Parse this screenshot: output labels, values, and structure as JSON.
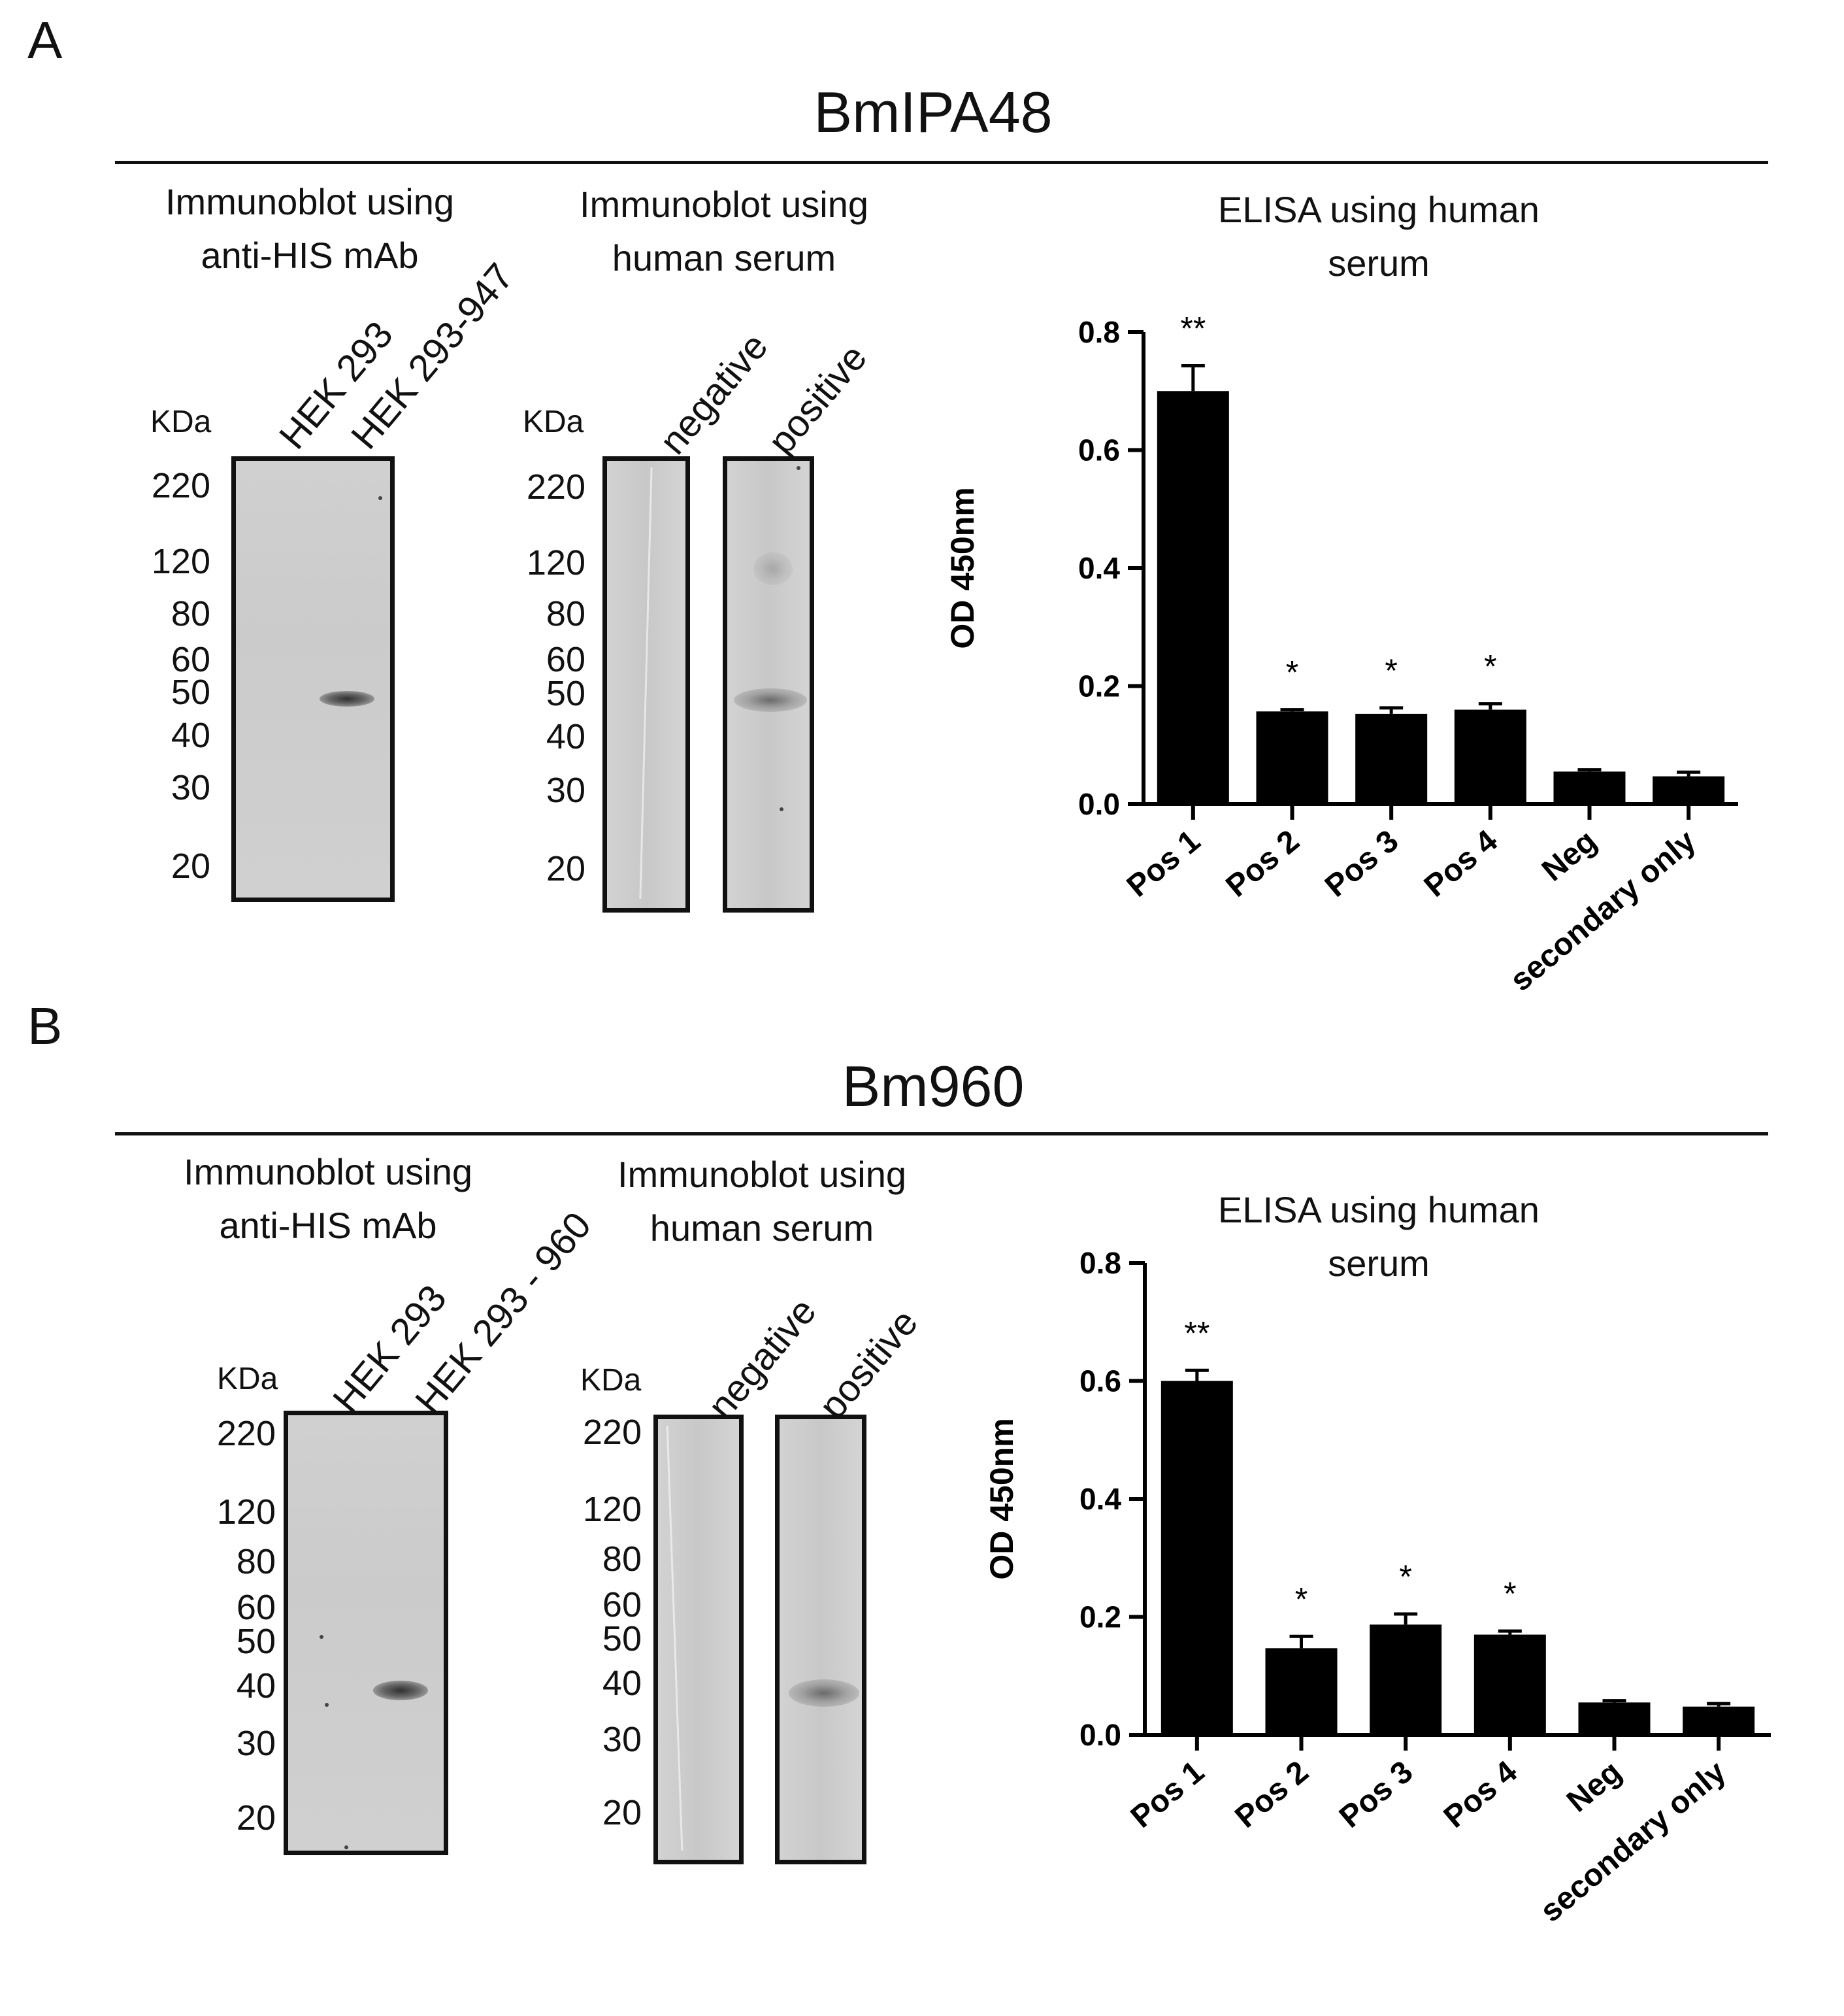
{
  "panels": [
    {
      "letter": "A",
      "protein": "BmIPA48",
      "his_blot": {
        "title_lines": [
          "Immunoblot using",
          "anti-HIS mAb"
        ],
        "kda": "KDa",
        "lanes": [
          "HEK 293",
          "HEK 293-947"
        ],
        "markers": [
          "220",
          "120",
          "80",
          "60",
          "50",
          "40",
          "30",
          "20"
        ],
        "band_kda": 50
      },
      "serum_blot": {
        "title_lines": [
          "Immunoblot using",
          "human serum"
        ],
        "kda": "KDa",
        "lanes": [
          "negative",
          "positive"
        ],
        "markers": [
          "220",
          "120",
          "80",
          "60",
          "50",
          "40",
          "30",
          "20"
        ],
        "band_kda": 50
      }
    },
    {
      "letter": "B",
      "protein": "Bm960",
      "his_blot": {
        "title_lines": [
          "Immunoblot using",
          "anti-HIS mAb"
        ],
        "kda": "KDa",
        "lanes": [
          "HEK 293",
          "HEK 293 - 960"
        ],
        "markers": [
          "220",
          "120",
          "80",
          "60",
          "50",
          "40",
          "30",
          "20"
        ],
        "band_kda": 40
      },
      "serum_blot": {
        "title_lines": [
          "Immunoblot using",
          "human serum"
        ],
        "kda": "KDa",
        "lanes": [
          "negative",
          "positive"
        ],
        "markers": [
          "220",
          "120",
          "80",
          "60",
          "50",
          "40",
          "30",
          "20"
        ],
        "band_kda": 40
      }
    }
  ],
  "chart_data": [
    {
      "type": "bar",
      "title_lines": [
        "ELISA using human",
        "serum"
      ],
      "ylabel": "OD 450nm",
      "ylim": [
        0,
        0.8
      ],
      "yticks": [
        "0.0",
        "0.2",
        "0.4",
        "0.6",
        "0.8"
      ],
      "categories": [
        "Pos 1",
        "Pos 2",
        "Pos 3",
        "Pos 4",
        "Neg",
        "secondary only"
      ],
      "values": [
        0.7,
        0.157,
        0.153,
        0.16,
        0.055,
        0.047
      ],
      "errors": [
        0.043,
        0.003,
        0.01,
        0.01,
        0.003,
        0.007
      ],
      "significance": [
        "**",
        "*",
        "*",
        "*",
        "",
        ""
      ],
      "bar_color": "#000000"
    },
    {
      "type": "bar",
      "title_lines": [
        "ELISA using human",
        "serum"
      ],
      "ylabel": "OD 450nm",
      "ylim": [
        0,
        0.8
      ],
      "yticks": [
        "0.0",
        "0.2",
        "0.4",
        "0.6",
        "0.8"
      ],
      "categories": [
        "Pos 1",
        "Pos 2",
        "Pos 3",
        "Pos 4",
        "Neg",
        "secondary only"
      ],
      "values": [
        0.6,
        0.147,
        0.187,
        0.17,
        0.055,
        0.048
      ],
      "errors": [
        0.018,
        0.02,
        0.018,
        0.006,
        0.003,
        0.005
      ],
      "significance": [
        "**",
        "*",
        "*",
        "*",
        "",
        ""
      ],
      "bar_color": "#000000"
    }
  ]
}
